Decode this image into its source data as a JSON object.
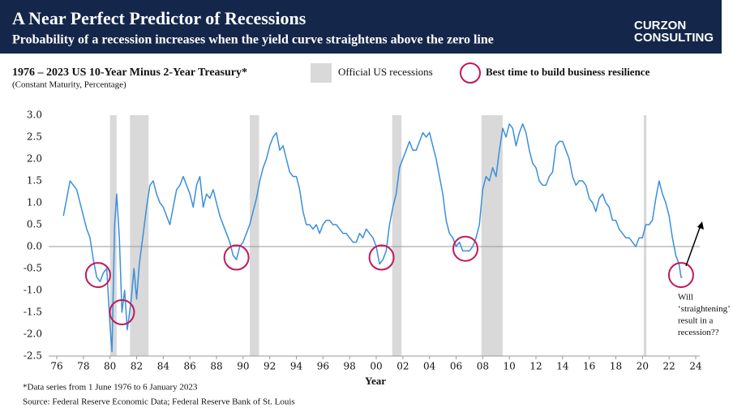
{
  "header": {
    "title": "A Near Perfect Predictor of Recessions",
    "subtitle": "Probability of a recession increases when the yield curve straightens above the zero line",
    "logo": [
      "CURZON",
      "CONSULTING"
    ]
  },
  "chart_data": {
    "type": "line",
    "title": "1976 – 2023 US 10-Year Minus 2-Year Treasury*",
    "subtitle": "(Constant Maturity, Percentage)",
    "recession_label": "Official US recessions",
    "highlight_label": "Best time to build business resilience",
    "xlabel": "Year",
    "color": "#3a8fdb",
    "x": [
      1976.5,
      1976.75,
      1977,
      1977.25,
      1977.5,
      1977.75,
      1978,
      1978.25,
      1978.5,
      1978.75,
      1979,
      1979.25,
      1979.5,
      1979.75,
      1980,
      1980.15,
      1980.35,
      1980.5,
      1980.7,
      1980.9,
      1981.1,
      1981.3,
      1981.6,
      1981.8,
      1982,
      1982.2,
      1982.5,
      1982.75,
      1983,
      1983.25,
      1983.5,
      1983.75,
      1984,
      1984.25,
      1984.5,
      1984.75,
      1985,
      1985.25,
      1985.5,
      1985.75,
      1986,
      1986.25,
      1986.5,
      1986.75,
      1987,
      1987.25,
      1987.5,
      1987.75,
      1988,
      1988.25,
      1988.5,
      1988.75,
      1989,
      1989.25,
      1989.5,
      1989.75,
      1990,
      1990.25,
      1990.5,
      1990.75,
      1991,
      1991.25,
      1991.5,
      1991.75,
      1992,
      1992.25,
      1992.5,
      1992.75,
      1993,
      1993.25,
      1993.5,
      1993.75,
      1994,
      1994.25,
      1994.5,
      1994.75,
      1995,
      1995.25,
      1995.5,
      1995.75,
      1996,
      1996.25,
      1996.5,
      1996.75,
      1997,
      1997.25,
      1997.5,
      1997.75,
      1998,
      1998.25,
      1998.5,
      1998.75,
      1999,
      1999.25,
      1999.5,
      1999.75,
      2000,
      2000.25,
      2000.5,
      2000.75,
      2001,
      2001.25,
      2001.5,
      2001.75,
      2002,
      2002.25,
      2002.5,
      2002.75,
      2003,
      2003.25,
      2003.5,
      2003.75,
      2004,
      2004.25,
      2004.5,
      2004.75,
      2005,
      2005.25,
      2005.5,
      2005.75,
      2006,
      2006.25,
      2006.5,
      2006.75,
      2007,
      2007.25,
      2007.5,
      2007.75,
      2008,
      2008.25,
      2008.5,
      2008.75,
      2009,
      2009.25,
      2009.5,
      2009.75,
      2010,
      2010.25,
      2010.5,
      2010.75,
      2011,
      2011.25,
      2011.5,
      2011.75,
      2012,
      2012.25,
      2012.5,
      2012.75,
      2013,
      2013.25,
      2013.5,
      2013.75,
      2014,
      2014.25,
      2014.5,
      2014.75,
      2015,
      2015.25,
      2015.5,
      2015.75,
      2016,
      2016.25,
      2016.5,
      2016.75,
      2017,
      2017.25,
      2017.5,
      2017.75,
      2018,
      2018.25,
      2018.5,
      2018.75,
      2019,
      2019.25,
      2019.5,
      2019.75,
      2020,
      2020.25,
      2020.5,
      2020.75,
      2021,
      2021.25,
      2021.5,
      2021.75,
      2022,
      2022.25,
      2022.5,
      2022.75,
      2022.9,
      2023
    ],
    "values": [
      0.7,
      1.1,
      1.5,
      1.4,
      1.3,
      1.0,
      0.7,
      0.4,
      0.2,
      -0.3,
      -0.7,
      -0.8,
      -0.6,
      -0.5,
      -1.8,
      -2.4,
      0.5,
      1.2,
      0.2,
      -1.5,
      -1.0,
      -1.9,
      -1.2,
      -0.5,
      -1.2,
      -0.4,
      0.3,
      0.9,
      1.4,
      1.5,
      1.2,
      1.0,
      0.9,
      0.7,
      0.5,
      0.9,
      1.3,
      1.4,
      1.6,
      1.4,
      1.2,
      0.9,
      1.4,
      1.6,
      0.9,
      1.2,
      1.1,
      1.3,
      1.0,
      0.7,
      0.5,
      0.3,
      0.1,
      -0.2,
      -0.3,
      0.0,
      0.1,
      0.3,
      0.5,
      0.8,
      1.1,
      1.5,
      1.8,
      2.0,
      2.3,
      2.5,
      2.6,
      2.2,
      2.3,
      2.0,
      1.7,
      1.6,
      1.6,
      1.3,
      0.8,
      0.5,
      0.5,
      0.4,
      0.5,
      0.3,
      0.5,
      0.6,
      0.6,
      0.5,
      0.5,
      0.4,
      0.3,
      0.3,
      0.2,
      0.1,
      0.1,
      0.3,
      0.2,
      0.4,
      0.3,
      0.2,
      0.0,
      -0.4,
      -0.3,
      -0.1,
      0.5,
      0.9,
      1.2,
      1.8,
      2.0,
      2.2,
      2.4,
      2.2,
      2.2,
      2.4,
      2.6,
      2.5,
      2.6,
      2.3,
      2.0,
      1.6,
      1.2,
      0.6,
      0.3,
      0.2,
      0.0,
      0.1,
      -0.1,
      -0.1,
      -0.1,
      0.0,
      0.2,
      0.5,
      1.3,
      1.6,
      1.5,
      1.8,
      1.6,
      2.2,
      2.7,
      2.5,
      2.8,
      2.7,
      2.3,
      2.6,
      2.8,
      2.6,
      2.2,
      1.9,
      1.8,
      1.5,
      1.4,
      1.4,
      1.6,
      1.7,
      2.3,
      2.4,
      2.4,
      2.2,
      2.0,
      1.6,
      1.4,
      1.5,
      1.5,
      1.4,
      1.1,
      1.0,
      0.8,
      1.1,
      1.2,
      1.0,
      0.9,
      0.6,
      0.6,
      0.4,
      0.3,
      0.2,
      0.2,
      0.1,
      0.0,
      0.2,
      0.2,
      0.5,
      0.5,
      0.6,
      1.1,
      1.5,
      1.2,
      1.0,
      0.7,
      0.2,
      -0.2,
      -0.4,
      -0.7,
      -0.7
    ],
    "recessions": [
      [
        1980.0,
        1980.5
      ],
      [
        1981.5,
        1982.9
      ],
      [
        1990.5,
        1991.2
      ],
      [
        2001.2,
        2001.9
      ],
      [
        2007.9,
        2009.5
      ],
      [
        2020.1,
        2020.3
      ]
    ],
    "highlights": [
      {
        "x": 1979.1,
        "y": -0.65
      },
      {
        "x": 1980.9,
        "y": -1.5
      },
      {
        "x": 1989.5,
        "y": -0.25
      },
      {
        "x": 2000.4,
        "y": -0.25
      },
      {
        "x": 2006.7,
        "y": -0.05
      },
      {
        "x": 2022.9,
        "y": -0.65
      }
    ],
    "annotation": [
      "Will",
      "‘straightening’",
      "result in a",
      "recession??"
    ],
    "xlim": [
      1976,
      2024
    ],
    "xticks": [
      {
        "value": 1976,
        "label": "76"
      },
      {
        "value": 1978,
        "label": "78"
      },
      {
        "value": 1980,
        "label": "80"
      },
      {
        "value": 1982,
        "label": "82"
      },
      {
        "value": 1984,
        "label": "84"
      },
      {
        "value": 1986,
        "label": "86"
      },
      {
        "value": 1988,
        "label": "88"
      },
      {
        "value": 1990,
        "label": "90"
      },
      {
        "value": 1992,
        "label": "92"
      },
      {
        "value": 1994,
        "label": "94"
      },
      {
        "value": 1996,
        "label": "96"
      },
      {
        "value": 1998,
        "label": "98"
      },
      {
        "value": 2000,
        "label": "00"
      },
      {
        "value": 2002,
        "label": "02"
      },
      {
        "value": 2004,
        "label": "04"
      },
      {
        "value": 2006,
        "label": "06"
      },
      {
        "value": 2008,
        "label": "08"
      },
      {
        "value": 2010,
        "label": "10"
      },
      {
        "value": 2012,
        "label": "12"
      },
      {
        "value": 2014,
        "label": "14"
      },
      {
        "value": 2016,
        "label": "16"
      },
      {
        "value": 2018,
        "label": "18"
      },
      {
        "value": 2020,
        "label": "20"
      },
      {
        "value": 2022,
        "label": "22"
      },
      {
        "value": 2024,
        "label": "24"
      }
    ],
    "ylim": [
      -2.5,
      3.0
    ],
    "yticks": [
      {
        "value": 3.0,
        "label": "3.0"
      },
      {
        "value": 2.5,
        "label": "2.5"
      },
      {
        "value": 2.0,
        "label": "2.0"
      },
      {
        "value": 1.5,
        "label": "1.5"
      },
      {
        "value": 1.0,
        "label": "1.0"
      },
      {
        "value": 0.5,
        "label": "0.5"
      },
      {
        "value": 0,
        "label": "0.0"
      },
      {
        "value": -0.5,
        "label": "-0.5"
      },
      {
        "value": -1.0,
        "label": "-1.0"
      },
      {
        "value": -1.5,
        "label": "-1.5"
      },
      {
        "value": -2.0,
        "label": "-2.0"
      },
      {
        "value": -2.5,
        "label": "-2.5"
      }
    ],
    "footnotes": [
      "*Data series from 1 June 1976 to 6 January 2023",
      "Source: Federal Reserve Economic Data; Federal Reserve Bank of St. Louis"
    ]
  }
}
